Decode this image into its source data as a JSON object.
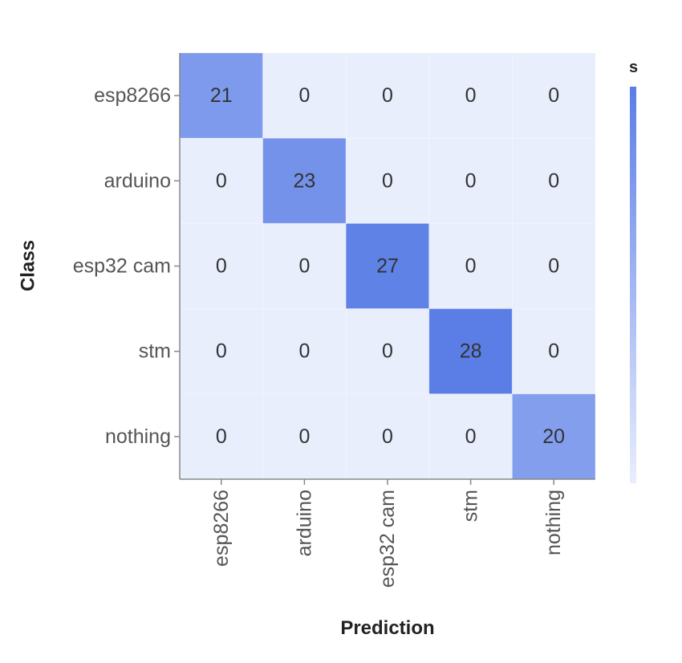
{
  "chart_data": {
    "type": "heatmap",
    "title": "",
    "xlabel": "Prediction",
    "ylabel": "Class",
    "rows": [
      "esp8266",
      "arduino",
      "esp32 cam",
      "stm",
      "nothing"
    ],
    "columns": [
      "esp8266",
      "arduino",
      "esp32 cam",
      "stm",
      "nothing"
    ],
    "values": [
      [
        21,
        0,
        0,
        0,
        0
      ],
      [
        0,
        23,
        0,
        0,
        0
      ],
      [
        0,
        0,
        27,
        0,
        0
      ],
      [
        0,
        0,
        0,
        28,
        0
      ],
      [
        0,
        0,
        0,
        0,
        20
      ]
    ],
    "color_range": [
      0,
      28
    ],
    "colors": {
      "low": "#e9eefd",
      "high": "#5a7ee6"
    },
    "legend": {
      "title": "s",
      "placement": "right"
    },
    "grid": false
  }
}
